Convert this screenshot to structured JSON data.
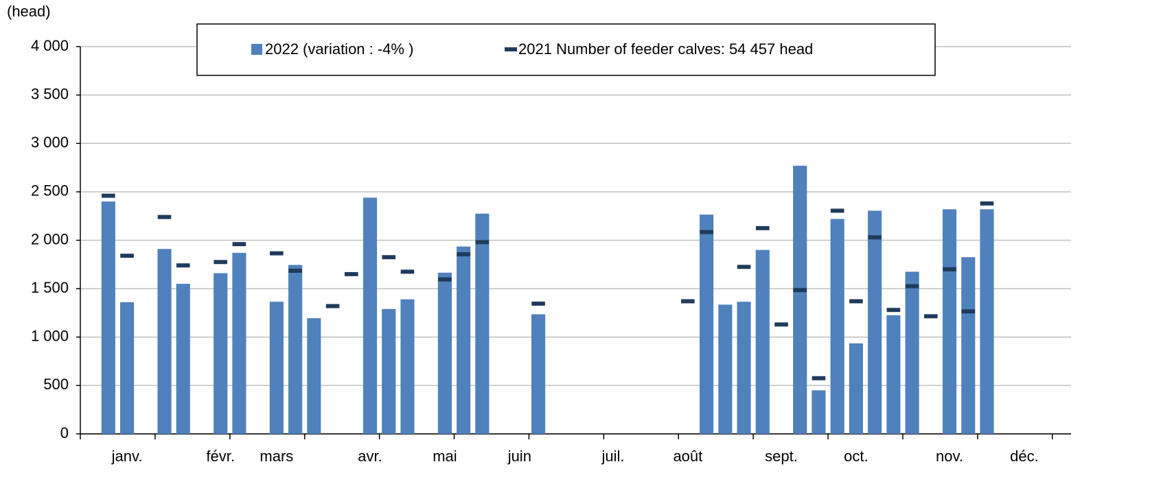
{
  "chart_data": {
    "type": "bar",
    "y_label": "(head)",
    "categories": [
      null,
      null,
      "janv.",
      null,
      null,
      null,
      null,
      "févr.",
      null,
      null,
      "mars",
      null,
      null,
      null,
      null,
      "avr.",
      null,
      null,
      null,
      "mai",
      null,
      null,
      null,
      "juin",
      null,
      null,
      null,
      null,
      "juil.",
      null,
      null,
      null,
      "août",
      null,
      null,
      null,
      null,
      "sept.",
      null,
      null,
      null,
      "oct.",
      null,
      null,
      null,
      null,
      "nov.",
      null,
      null,
      null,
      "déc.",
      null,
      null
    ],
    "series": [
      {
        "name": "2022 (variation : -4% )",
        "type": "bar",
        "color": "#4f81bd",
        "values": [
          null,
          2400,
          1360,
          null,
          1910,
          1550,
          null,
          1660,
          1870,
          null,
          1365,
          1745,
          1195,
          null,
          null,
          2440,
          1290,
          1390,
          null,
          1665,
          1935,
          2275,
          null,
          null,
          1235,
          null,
          null,
          null,
          null,
          null,
          null,
          null,
          null,
          2265,
          1335,
          1365,
          1900,
          null,
          2770,
          450,
          2220,
          935,
          2305,
          1225,
          1675,
          null,
          2320,
          1825,
          2320,
          null,
          null,
          null,
          null
        ]
      },
      {
        "name": "2021 Number of feeder calves: 54 457 head",
        "type": "marker",
        "color": "#1f3b5c",
        "values": [
          null,
          2460,
          1840,
          null,
          2240,
          1740,
          null,
          1775,
          1960,
          null,
          1865,
          1685,
          null,
          1320,
          1650,
          null,
          1825,
          1675,
          null,
          1595,
          1855,
          1980,
          null,
          null,
          1345,
          null,
          null,
          null,
          null,
          null,
          null,
          null,
          1370,
          2085,
          null,
          1725,
          2125,
          1130,
          1485,
          575,
          2305,
          1370,
          2030,
          1280,
          1525,
          1215,
          1700,
          1265,
          2380,
          null,
          null,
          null,
          null
        ]
      }
    ],
    "ylim": [
      0,
      4000
    ],
    "yticks": [
      0,
      500,
      {
        "value": 1000,
        "label": "1 000"
      },
      {
        "value": 1500,
        "label": "1 500"
      },
      {
        "value": 2000,
        "label": "2 000"
      },
      {
        "value": 2500,
        "label": "2 500"
      },
      {
        "value": 3000,
        "label": "3 000"
      },
      {
        "value": 3500,
        "label": "3 500"
      },
      {
        "value": 4000,
        "label": "4 000"
      }
    ],
    "grid": true
  }
}
